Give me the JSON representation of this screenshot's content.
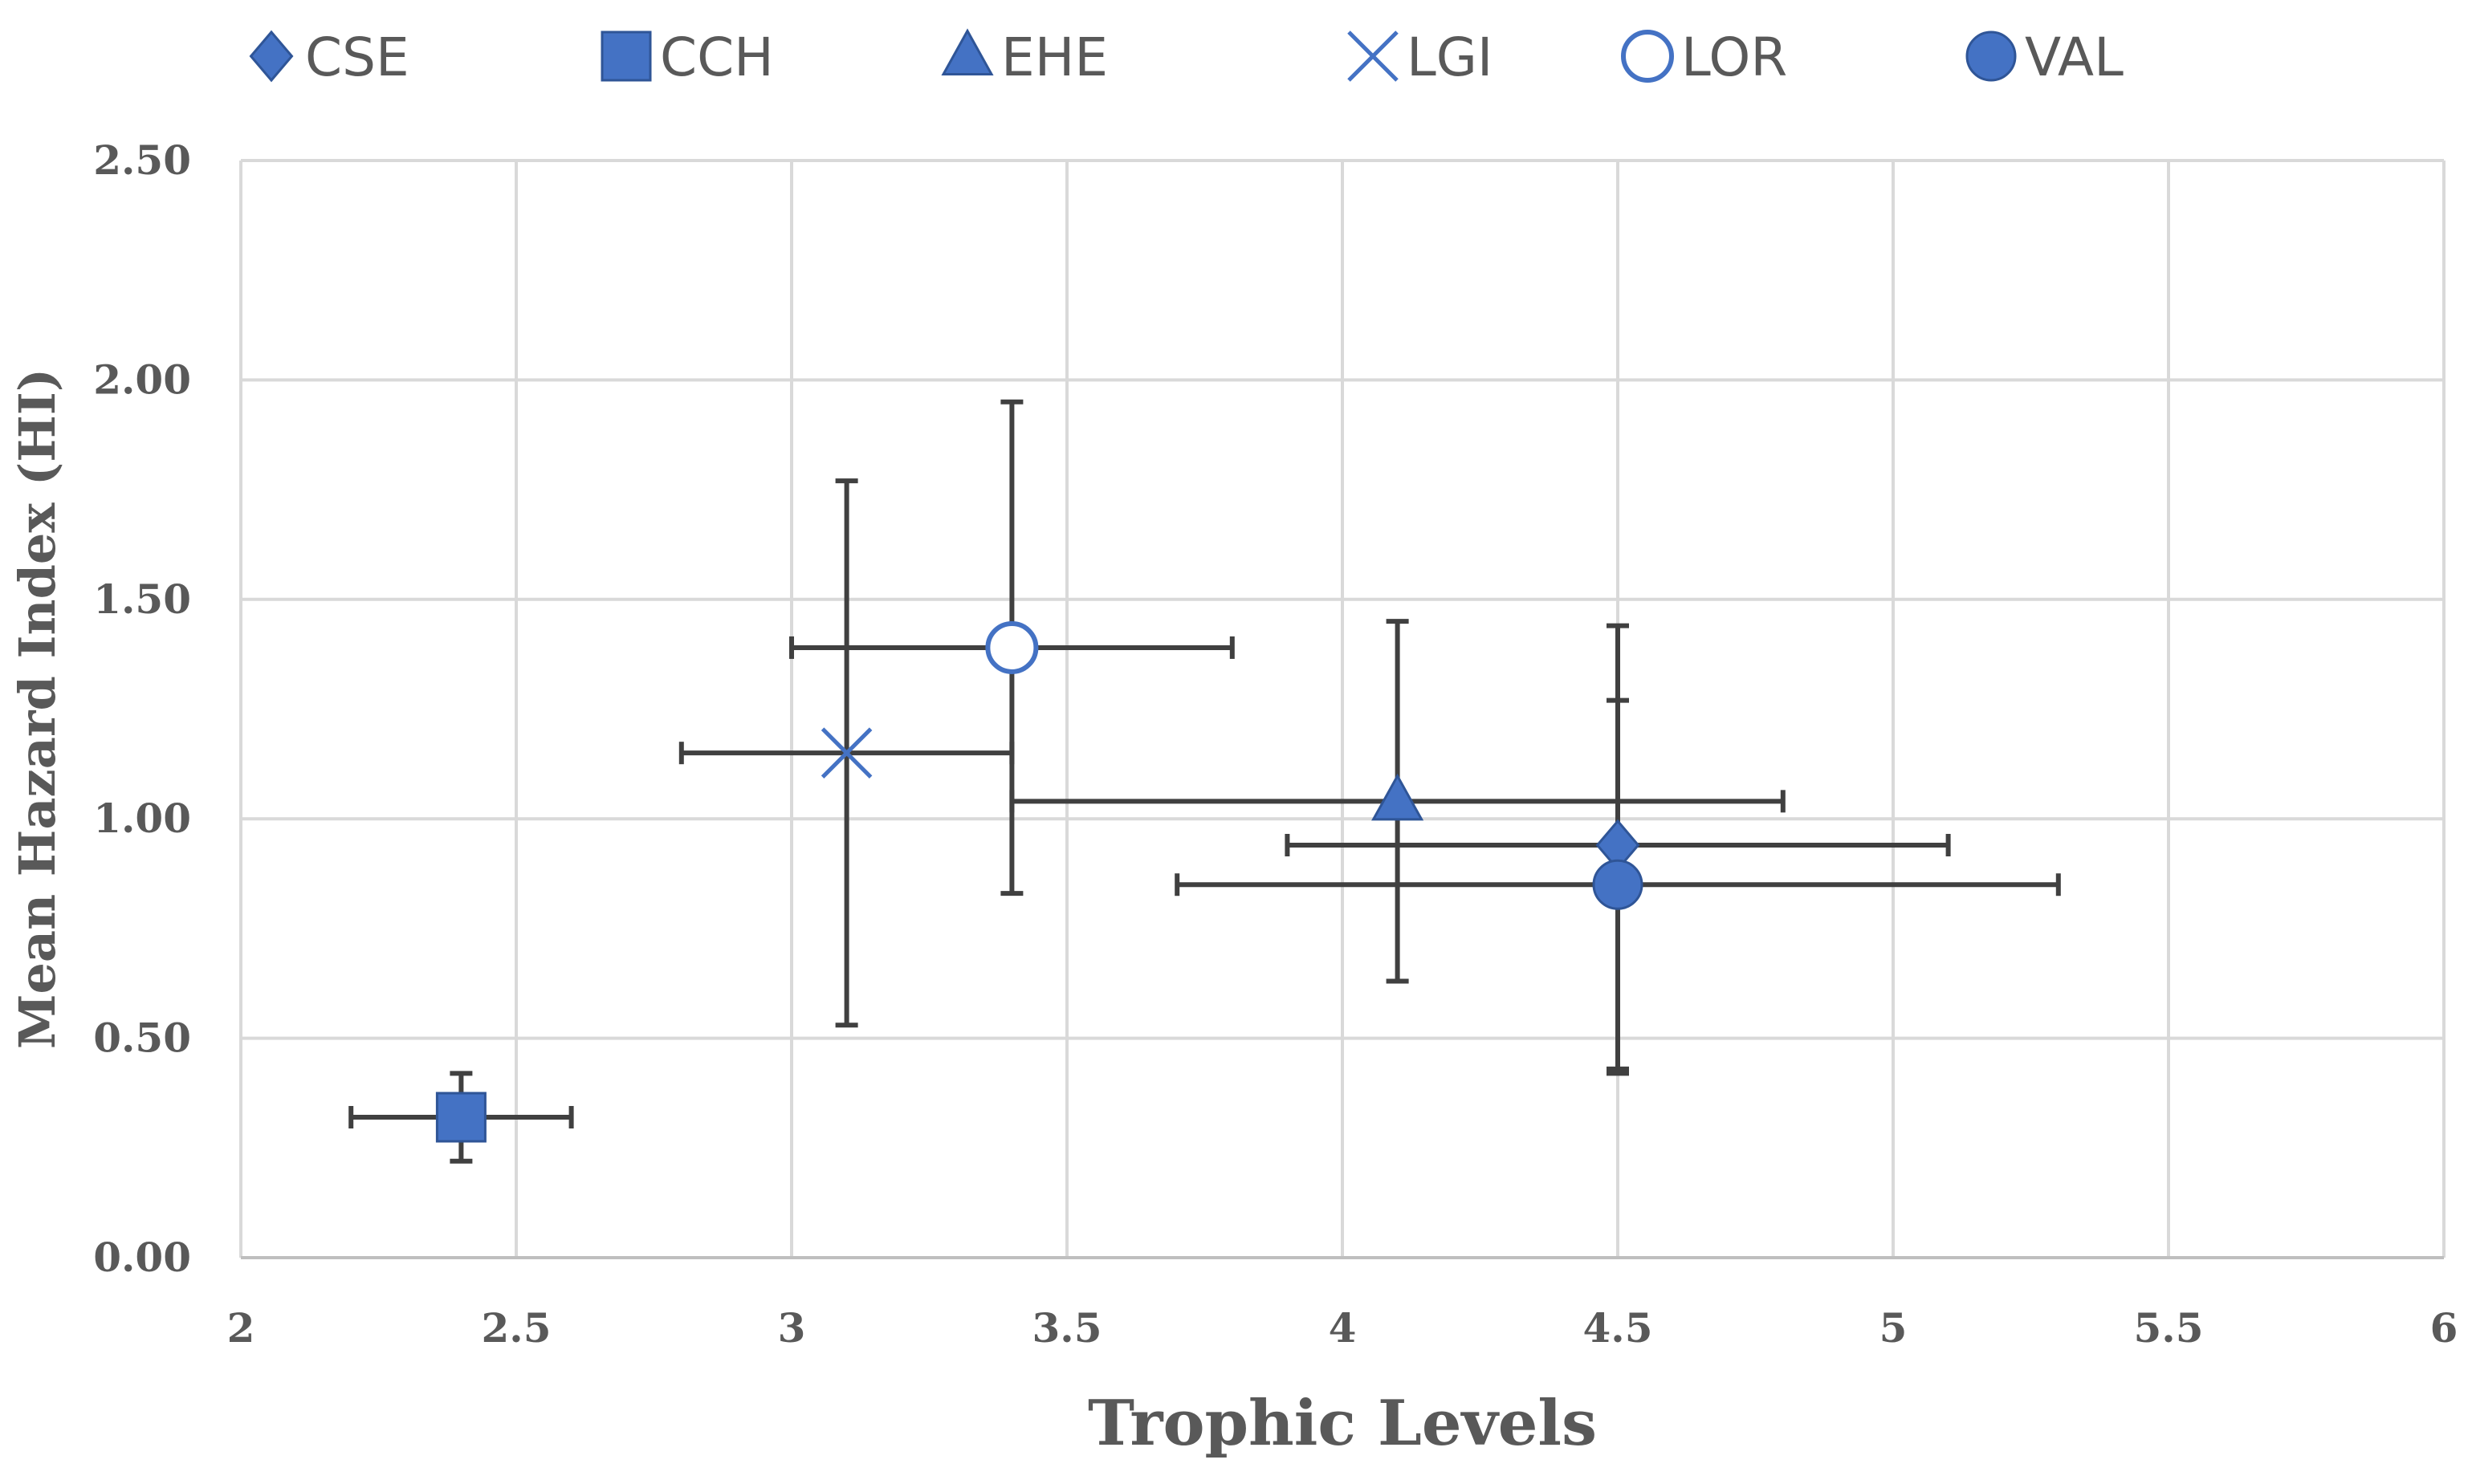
{
  "chart_data": {
    "type": "scatter",
    "title": "",
    "xlabel": "Trophic Levels",
    "ylabel": "Mean Hazard Index (HI)",
    "xlim": [
      2,
      6
    ],
    "ylim": [
      0,
      2.5
    ],
    "x_ticks": [
      2,
      2.5,
      3,
      3.5,
      4,
      4.5,
      5,
      5.5,
      6
    ],
    "x_tick_labels": [
      "2",
      "2.5",
      "3",
      "3.5",
      "4",
      "4.5",
      "5",
      "5.5",
      "6"
    ],
    "y_ticks": [
      0,
      0.5,
      1,
      1.5,
      2,
      2.5
    ],
    "y_tick_labels": [
      "0.00",
      "0.50",
      "1.00",
      "1.50",
      "2.00",
      "2.50"
    ],
    "grid": true,
    "legend_position": "top",
    "colors": {
      "marker": "#4472c4",
      "marker_stroke": "#2f5597",
      "error_bar": "#404040",
      "grid": "#d9d9d9",
      "text": "#595959"
    },
    "series": [
      {
        "name": "CSE",
        "marker": "diamond",
        "x": 4.5,
        "y": 0.94,
        "x_err": [
          3.9,
          5.1
        ],
        "y_err": [
          0.43,
          1.44
        ]
      },
      {
        "name": "CCH",
        "marker": "square",
        "x": 2.4,
        "y": 0.32,
        "x_err": [
          2.2,
          2.6
        ],
        "y_err": [
          0.22,
          0.42
        ]
      },
      {
        "name": "EHE",
        "marker": "triangle",
        "x": 4.1,
        "y": 1.04,
        "x_err": [
          3.4,
          4.8
        ],
        "y_err": [
          0.63,
          1.45
        ]
      },
      {
        "name": "LGI",
        "marker": "x",
        "x": 3.1,
        "y": 1.15,
        "x_err": [
          2.8,
          3.4
        ],
        "y_err": [
          0.53,
          1.77
        ]
      },
      {
        "name": "LOR",
        "marker": "circle-open",
        "x": 3.4,
        "y": 1.39,
        "x_err": [
          3.0,
          3.8
        ],
        "y_err": [
          0.83,
          1.95
        ]
      },
      {
        "name": "VAL",
        "marker": "circle",
        "x": 4.5,
        "y": 0.85,
        "x_err": [
          3.7,
          5.3
        ],
        "y_err": [
          0.42,
          1.27
        ]
      }
    ]
  }
}
